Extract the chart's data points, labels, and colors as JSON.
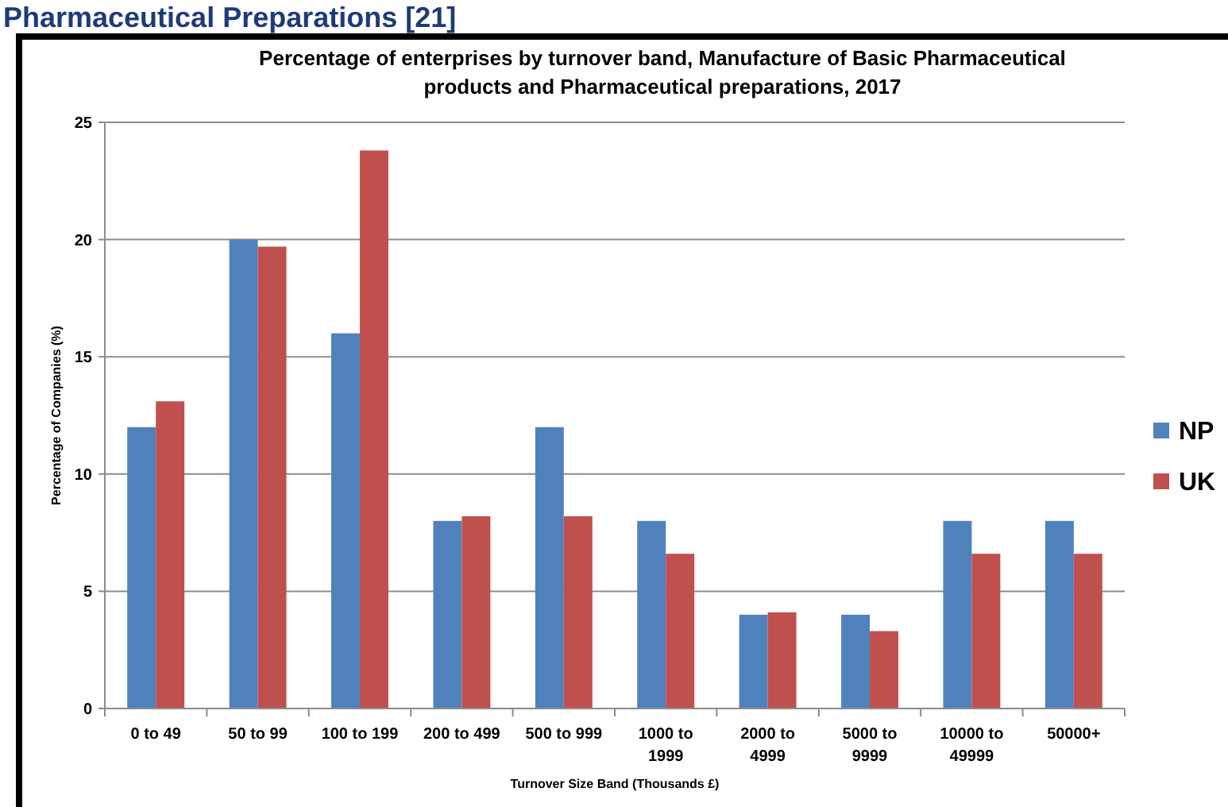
{
  "chart_data": {
    "type": "bar",
    "title": "Percentage of enterprises by turnover band, Manufacture of Basic Pharmaceutical products and Pharmaceutical preparations, 2017",
    "annotations": [
      "Pharmaceutical Preparations [21]"
    ],
    "xlabel": "Turnover Size Band (Thousands £)",
    "ylabel": "Percentage of Companies (%)",
    "categories": [
      "0 to 49",
      "50 to 99",
      "100 to 199",
      "200 to 499",
      "500 to 999",
      "1000 to 1999",
      "2000 to 4999",
      "5000 to 9999",
      "10000 to 49999",
      "50000+"
    ],
    "series": [
      {
        "name": "NP",
        "color": "#4f81bd",
        "values": [
          12,
          20,
          16,
          8,
          12,
          8,
          4,
          4,
          8,
          8
        ]
      },
      {
        "name": "UK",
        "color": "#c0504d",
        "values": [
          13.1,
          19.7,
          23.8,
          8.2,
          8.2,
          6.6,
          4.1,
          3.3,
          6.6,
          6.6
        ]
      }
    ],
    "ylim": [
      0,
      25
    ],
    "yticks": [
      0,
      5,
      10,
      15,
      20,
      25
    ],
    "grid": "y",
    "legend": "right"
  }
}
